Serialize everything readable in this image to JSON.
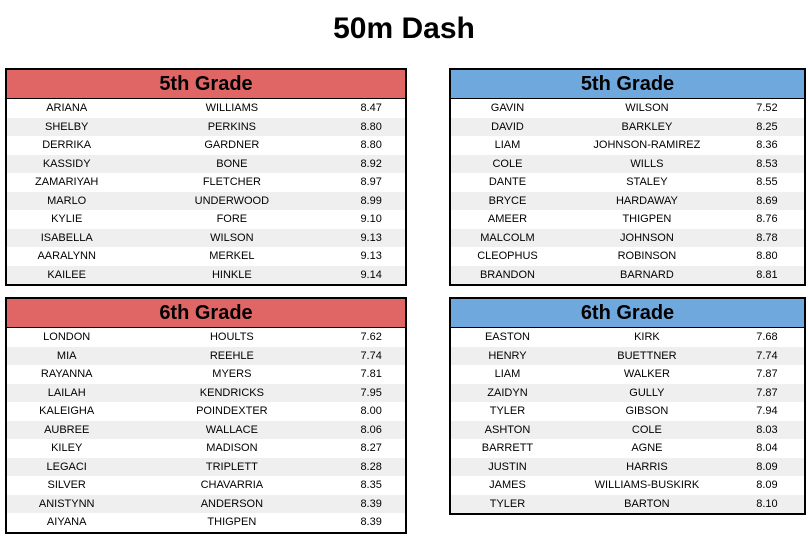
{
  "title": "50m Dash",
  "colors": {
    "red_header": "#E06666",
    "blue_header": "#6FA8DC",
    "row_stripe": "#EFEFEF",
    "border": "#000000"
  },
  "tables": [
    {
      "header": "5th Grade",
      "accent": "#E06666",
      "rows": [
        {
          "first": "ARIANA",
          "last": "WILLIAMS",
          "time": "8.47"
        },
        {
          "first": "SHELBY",
          "last": "PERKINS",
          "time": "8.80"
        },
        {
          "first": "DERRIKA",
          "last": "GARDNER",
          "time": "8.80"
        },
        {
          "first": "KASSIDY",
          "last": "BONE",
          "time": "8.92"
        },
        {
          "first": "ZAMARIYAH",
          "last": "FLETCHER",
          "time": "8.97"
        },
        {
          "first": "MARLO",
          "last": "UNDERWOOD",
          "time": "8.99"
        },
        {
          "first": "KYLIE",
          "last": "FORE",
          "time": "9.10"
        },
        {
          "first": "ISABELLA",
          "last": "WILSON",
          "time": "9.13"
        },
        {
          "first": "AARALYNN",
          "last": "MERKEL",
          "time": "9.13"
        },
        {
          "first": "KAILEE",
          "last": "HINKLE",
          "time": "9.14"
        }
      ]
    },
    {
      "header": "5th Grade",
      "accent": "#6FA8DC",
      "rows": [
        {
          "first": "GAVIN",
          "last": "WILSON",
          "time": "7.52"
        },
        {
          "first": "DAVID",
          "last": "BARKLEY",
          "time": "8.25"
        },
        {
          "first": "LIAM",
          "last": "JOHNSON-RAMIREZ",
          "time": "8.36"
        },
        {
          "first": "COLE",
          "last": "WILLS",
          "time": "8.53"
        },
        {
          "first": "DANTE",
          "last": "STALEY",
          "time": "8.55"
        },
        {
          "first": "BRYCE",
          "last": "HARDAWAY",
          "time": "8.69"
        },
        {
          "first": "AMEER",
          "last": "THIGPEN",
          "time": "8.76"
        },
        {
          "first": "MALCOLM",
          "last": "JOHNSON",
          "time": "8.78"
        },
        {
          "first": "CLEOPHUS",
          "last": "ROBINSON",
          "time": "8.80"
        },
        {
          "first": "BRANDON",
          "last": "BARNARD",
          "time": "8.81"
        }
      ]
    },
    {
      "header": "6th Grade",
      "accent": "#E06666",
      "rows": [
        {
          "first": "LONDON",
          "last": "HOULTS",
          "time": "7.62"
        },
        {
          "first": "MIA",
          "last": "REEHLE",
          "time": "7.74"
        },
        {
          "first": "RAYANNA",
          "last": "MYERS",
          "time": "7.81"
        },
        {
          "first": "LAILAH",
          "last": "KENDRICKS",
          "time": "7.95"
        },
        {
          "first": "KALEIGHA",
          "last": "POINDEXTER",
          "time": "8.00"
        },
        {
          "first": "AUBREE",
          "last": "WALLACE",
          "time": "8.06"
        },
        {
          "first": "KILEY",
          "last": "MADISON",
          "time": "8.27"
        },
        {
          "first": "LEGACI",
          "last": "TRIPLETT",
          "time": "8.28"
        },
        {
          "first": "SILVER",
          "last": "CHAVARRIA",
          "time": "8.35"
        },
        {
          "first": "ANISTYNN",
          "last": "ANDERSON",
          "time": "8.39"
        },
        {
          "first": "AIYANA",
          "last": "THIGPEN",
          "time": "8.39"
        }
      ]
    },
    {
      "header": "6th Grade",
      "accent": "#6FA8DC",
      "rows": [
        {
          "first": "EASTON",
          "last": "KIRK",
          "time": "7.68"
        },
        {
          "first": "HENRY",
          "last": "BUETTNER",
          "time": "7.74"
        },
        {
          "first": "LIAM",
          "last": "WALKER",
          "time": "7.87"
        },
        {
          "first": "ZAIDYN",
          "last": "GULLY",
          "time": "7.87"
        },
        {
          "first": "TYLER",
          "last": "GIBSON",
          "time": "7.94"
        },
        {
          "first": "ASHTON",
          "last": "COLE",
          "time": "8.03"
        },
        {
          "first": "BARRETT",
          "last": "AGNE",
          "time": "8.04"
        },
        {
          "first": "JUSTIN",
          "last": "HARRIS",
          "time": "8.09"
        },
        {
          "first": "JAMES",
          "last": "WILLIAMS-BUSKIRK",
          "time": "8.09"
        },
        {
          "first": "TYLER",
          "last": "BARTON",
          "time": "8.10"
        }
      ]
    }
  ]
}
